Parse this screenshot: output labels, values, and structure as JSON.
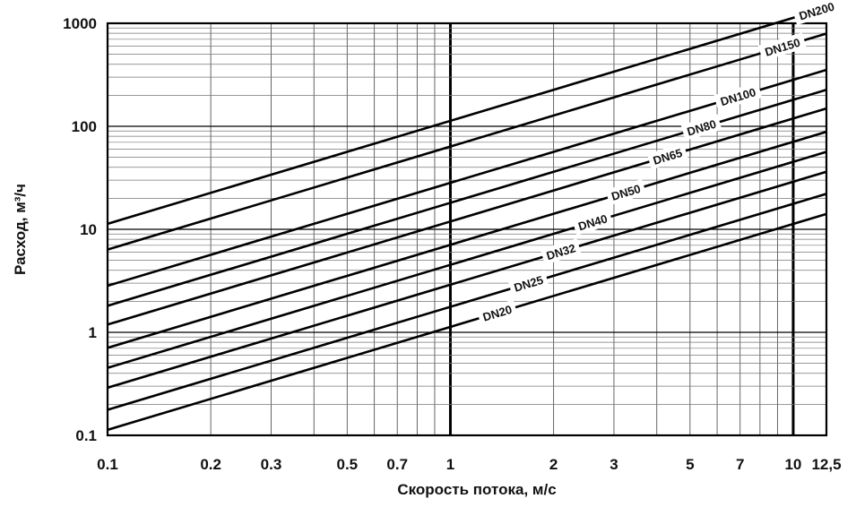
{
  "chart_data": {
    "type": "line",
    "xlabel": "Скорость потока, м/с",
    "ylabel": "Расход, м³/ч",
    "x_scale": "log",
    "y_scale": "log",
    "xlim": [
      0.1,
      12.5
    ],
    "ylim": [
      0.1,
      1000
    ],
    "grid": true,
    "x_ticks": [
      {
        "value": 0.1,
        "label": "0.1"
      },
      {
        "value": 0.2,
        "label": "0.2"
      },
      {
        "value": 0.3,
        "label": "0.3"
      },
      {
        "value": 0.5,
        "label": "0.5"
      },
      {
        "value": 0.7,
        "label": "0.7"
      },
      {
        "value": 1,
        "label": "1"
      },
      {
        "value": 2,
        "label": "2"
      },
      {
        "value": 3,
        "label": "3"
      },
      {
        "value": 5,
        "label": "5"
      },
      {
        "value": 7,
        "label": "7"
      },
      {
        "value": 10,
        "label": "10"
      },
      {
        "value": 12.5,
        "label": "12,5"
      }
    ],
    "y_ticks": [
      {
        "value": 0.1,
        "label": "0.1"
      },
      {
        "value": 1,
        "label": "1"
      },
      {
        "value": 10,
        "label": "10"
      },
      {
        "value": 100,
        "label": "100"
      },
      {
        "value": 1000,
        "label": "1000"
      }
    ],
    "series": [
      {
        "name": "DN20",
        "x": [
          0.1,
          12.5
        ],
        "y": [
          0.113,
          14.1
        ]
      },
      {
        "name": "DN25",
        "x": [
          0.1,
          12.5
        ],
        "y": [
          0.177,
          22.1
        ]
      },
      {
        "name": "DN32",
        "x": [
          0.1,
          12.5
        ],
        "y": [
          0.29,
          36.2
        ]
      },
      {
        "name": "DN40",
        "x": [
          0.1,
          12.5
        ],
        "y": [
          0.452,
          56.5
        ]
      },
      {
        "name": "DN50",
        "x": [
          0.1,
          12.5
        ],
        "y": [
          0.707,
          88.4
        ]
      },
      {
        "name": "DN65",
        "x": [
          0.1,
          12.5
        ],
        "y": [
          1.19,
          149
        ]
      },
      {
        "name": "DN80",
        "x": [
          0.1,
          12.5
        ],
        "y": [
          1.81,
          226
        ]
      },
      {
        "name": "DN100",
        "x": [
          0.1,
          12.5
        ],
        "y": [
          2.83,
          353
        ]
      },
      {
        "name": "DN150",
        "x": [
          0.1,
          12.5
        ],
        "y": [
          6.36,
          795
        ]
      },
      {
        "name": "DN200",
        "x": [
          0.1,
          12.5
        ],
        "y": [
          11.3,
          1413
        ]
      }
    ]
  }
}
